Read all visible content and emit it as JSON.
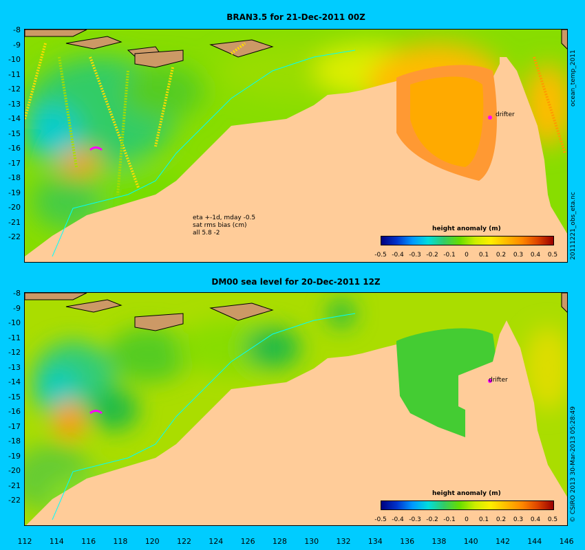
{
  "top_panel": {
    "title": "BRAN3.5 for 21-Dec-2011 00Z",
    "note_line1": "eta +-1d, mday -0.5",
    "note_line2": "sat rms bias (cm)",
    "note_line3": "all 5.8 -2",
    "colorbar_title": "height anomaly (m)",
    "drifter_label": "drifter",
    "side_label_upper": "ocean_temp_2011",
    "side_label_lower": "20111221_obs_eta.nc"
  },
  "bottom_panel": {
    "title": "DM00 sea level  for 20-Dec-2011 12Z",
    "colorbar_title": "height anomaly (m)",
    "drifter_label": "drifter",
    "side_label": "© CSIRO 2013   30-Mar-2013 05:28:49"
  },
  "colorbar_ticks": [
    "-0.5",
    "-0.4",
    "-0.3",
    "-0.2",
    "-0.1",
    "0",
    "0.1",
    "0.2",
    "0.3",
    "0.4",
    "0.5"
  ],
  "y_ticks": [
    "-8",
    "-9",
    "-10",
    "-11",
    "-12",
    "-13",
    "-14",
    "-15",
    "-16",
    "-17",
    "-18",
    "-19",
    "-20",
    "-21",
    "-22"
  ],
  "x_ticks": [
    "112",
    "114",
    "116",
    "118",
    "120",
    "122",
    "124",
    "126",
    "128",
    "130",
    "132",
    "134",
    "136",
    "138",
    "140",
    "142",
    "144",
    "146"
  ],
  "colors": {
    "background": "#00ccff",
    "land": "#ffcc99",
    "island": "#cc9966"
  }
}
